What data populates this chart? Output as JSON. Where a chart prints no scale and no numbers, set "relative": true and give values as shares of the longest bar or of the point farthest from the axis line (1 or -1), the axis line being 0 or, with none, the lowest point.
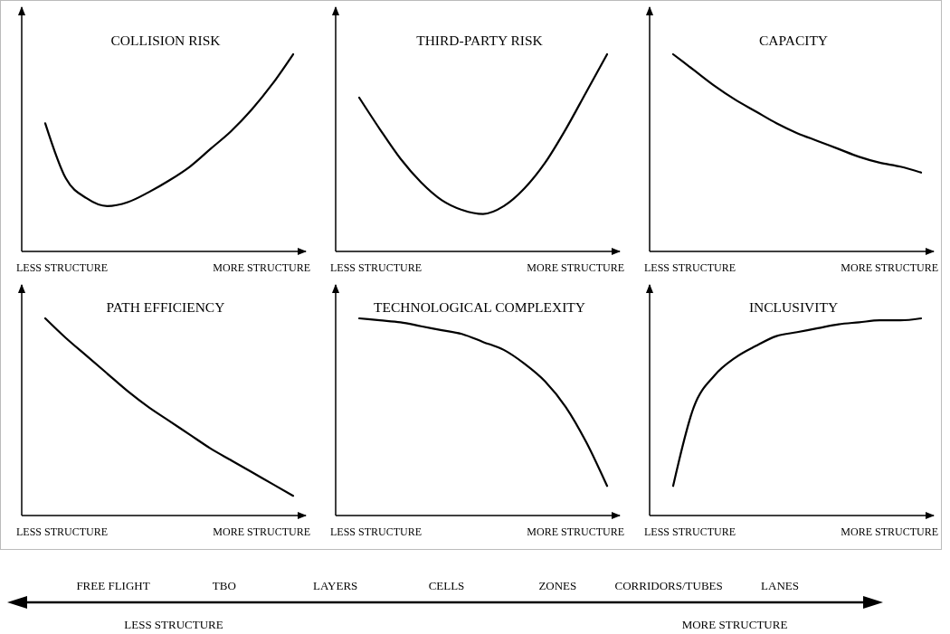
{
  "chart_data": [
    {
      "type": "line",
      "title": "COLLISION RISK",
      "relative": true,
      "categories": [
        null,
        null,
        null,
        null,
        null,
        null,
        null,
        null,
        null,
        null,
        null,
        null,
        null
      ],
      "values": [
        0.65,
        0.37,
        0.27,
        0.23,
        0.25,
        0.3,
        0.36,
        0.43,
        0.52,
        0.61,
        0.72,
        0.85,
        1
      ],
      "color": "#000000",
      "annotations": [
        "LESS STRUCTURE",
        "MORE STRUCTURE"
      ]
    },
    {
      "type": "line",
      "title": "THIRD-PARTY  RISK",
      "relative": true,
      "categories": [
        null,
        null,
        null,
        null,
        null,
        null,
        null,
        null,
        null,
        null,
        null,
        null,
        null
      ],
      "values": [
        0.78,
        0.62,
        0.47,
        0.35,
        0.26,
        0.21,
        0.19,
        0.23,
        0.32,
        0.45,
        0.62,
        0.81,
        1
      ],
      "color": "#000000",
      "annotations": [
        "LESS STRUCTURE",
        "MORE STRUCTURE"
      ]
    },
    {
      "type": "line",
      "title": "CAPACITY",
      "relative": true,
      "categories": [
        null,
        null,
        null,
        null,
        null,
        null,
        null,
        null,
        null,
        null,
        null,
        null,
        null
      ],
      "values": [
        1,
        0.92,
        0.84,
        0.77,
        0.71,
        0.65,
        0.6,
        0.56,
        0.52,
        0.48,
        0.45,
        0.43,
        0.4
      ],
      "color": "#000000",
      "annotations": [
        "LESS STRUCTURE",
        "MORE STRUCTURE"
      ]
    },
    {
      "type": "line",
      "title": "PATH EFFICIENCY",
      "relative": true,
      "categories": [
        null,
        null,
        null,
        null,
        null,
        null,
        null,
        null,
        null,
        null,
        null,
        null,
        null
      ],
      "values": [
        1,
        0.9,
        0.81,
        0.72,
        0.63,
        0.55,
        0.48,
        0.41,
        0.34,
        0.28,
        0.22,
        0.16,
        0.1
      ],
      "color": "#000000",
      "annotations": [
        "LESS STRUCTURE",
        "MORE STRUCTURE"
      ]
    },
    {
      "type": "line",
      "title": "TECHNOLOGICAL COMPLEXITY",
      "relative": true,
      "categories": [
        null,
        null,
        null,
        null,
        null,
        null,
        null,
        null,
        null,
        null,
        null,
        null,
        null
      ],
      "values": [
        1,
        0.99,
        0.98,
        0.96,
        0.94,
        0.92,
        0.88,
        0.84,
        0.77,
        0.68,
        0.55,
        0.37,
        0.15
      ],
      "color": "#000000",
      "annotations": [
        "LESS STRUCTURE",
        "MORE STRUCTURE"
      ]
    },
    {
      "type": "line",
      "title": "INCLUSIVITY",
      "relative": true,
      "categories": [
        null,
        null,
        null,
        null,
        null,
        null,
        null,
        null,
        null,
        null,
        null,
        null,
        null
      ],
      "values": [
        0.15,
        0.55,
        0.71,
        0.8,
        0.86,
        0.91,
        0.93,
        0.95,
        0.97,
        0.98,
        0.99,
        0.99,
        1
      ],
      "color": "#000000",
      "annotations": [
        "LESS STRUCTURE",
        "MORE STRUCTURE"
      ]
    },
    {
      "type": "other",
      "categories": [
        "FREE FLIGHT",
        "TBO",
        "LAYERS",
        "CELLS",
        "ZONES",
        "CORRIDORS/TUBES",
        "LANES"
      ],
      "annotations": [
        "LESS STRUCTURE",
        "MORE STRUCTURE"
      ]
    }
  ]
}
